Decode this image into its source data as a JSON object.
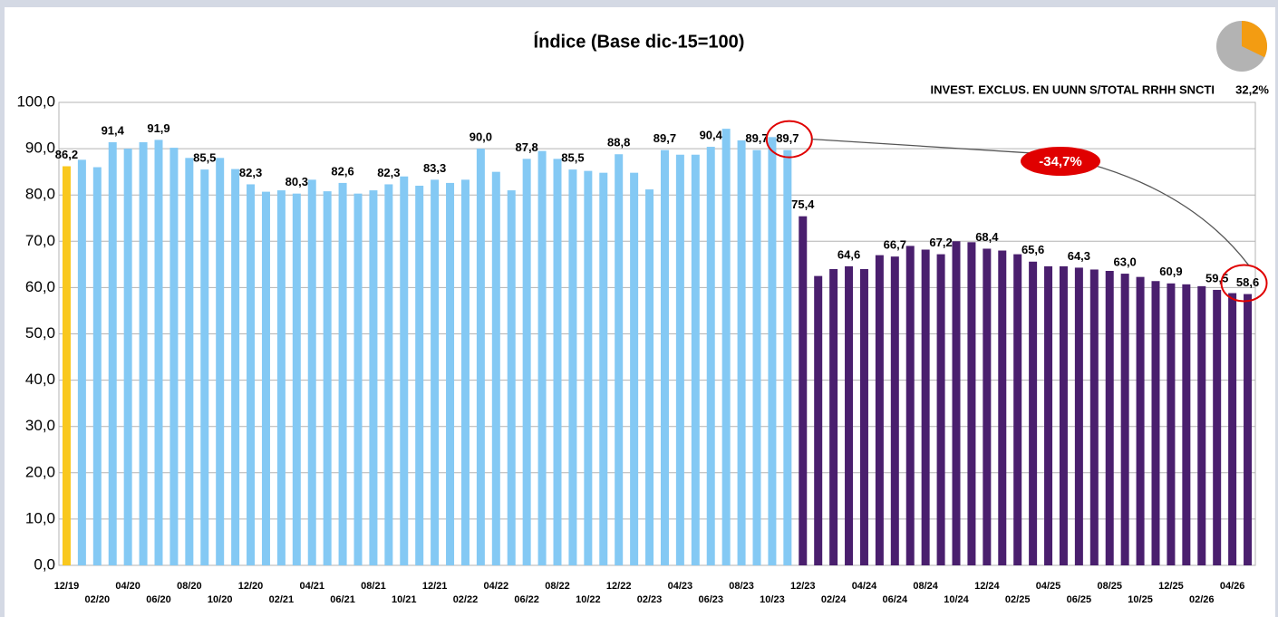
{
  "chart_data": {
    "type": "bar",
    "title": "Índice (Base dic-15=100)",
    "categories": [
      "12/19",
      null,
      "02/20",
      null,
      "04/20",
      null,
      "06/20",
      null,
      "08/20",
      null,
      "10/20",
      null,
      "12/20",
      null,
      "02/21",
      null,
      "04/21",
      null,
      "06/21",
      null,
      "08/21",
      null,
      "10/21",
      null,
      "12/21",
      null,
      "02/22",
      null,
      "04/22",
      null,
      "06/22",
      null,
      "08/22",
      null,
      "10/22",
      null,
      "12/22",
      null,
      "02/23",
      null,
      "04/23",
      null,
      "06/23",
      null,
      "08/23",
      null,
      "10/23",
      null,
      "12/23",
      null,
      "02/24",
      null,
      "04/24",
      null,
      "06/24",
      null,
      "08/24",
      null,
      "10/24",
      null,
      "12/24",
      null,
      "02/25",
      null,
      "04/25",
      null,
      "06/25",
      null,
      "08/25",
      null,
      "10/25",
      null,
      "12/25",
      null,
      "02/26",
      null,
      "04/26",
      null
    ],
    "series": [
      {
        "color": "#f9c81e",
        "values": [
          86.2,
          null,
          null,
          null,
          null,
          null,
          null,
          null,
          null,
          null,
          null,
          null,
          null,
          null,
          null,
          null,
          null,
          null,
          null,
          null,
          null,
          null,
          null,
          null,
          null,
          null,
          null,
          null,
          null,
          null,
          null,
          null,
          null,
          null,
          null,
          null,
          null,
          null,
          null,
          null,
          null,
          null,
          null,
          null,
          null,
          null,
          null,
          null,
          null,
          null,
          null,
          null,
          null,
          null,
          null,
          null,
          null,
          null,
          null,
          null,
          null,
          null,
          null,
          null,
          null,
          null,
          null,
          null,
          null,
          null,
          null,
          null,
          null,
          null,
          null,
          null,
          null,
          null
        ],
        "value_labels": [
          "86,2",
          null,
          null,
          null,
          null,
          null,
          null,
          null,
          null,
          null,
          null,
          null,
          null,
          null,
          null,
          null,
          null,
          null,
          null,
          null,
          null,
          null,
          null,
          null,
          null,
          null,
          null,
          null,
          null,
          null,
          null,
          null,
          null,
          null,
          null,
          null,
          null,
          null,
          null,
          null,
          null,
          null,
          null,
          null,
          null,
          null,
          null,
          null,
          null,
          null,
          null,
          null,
          null,
          null,
          null,
          null,
          null,
          null,
          null,
          null,
          null,
          null,
          null,
          null,
          null,
          null,
          null,
          null,
          null,
          null,
          null,
          null,
          null,
          null,
          null,
          null,
          null,
          null
        ]
      },
      {
        "color": "#84c9f4",
        "values": [
          null,
          87.6,
          86,
          91.4,
          90,
          91.4,
          91.9,
          90.2,
          88,
          85.5,
          88,
          85.6,
          82.3,
          80.7,
          81,
          80.3,
          83.3,
          80.8,
          82.6,
          80.3,
          81,
          82.3,
          84,
          82,
          83.3,
          82.6,
          83.3,
          90.0,
          85,
          81,
          87.8,
          89.5,
          87.8,
          85.5,
          85.2,
          84.8,
          88.8,
          84.8,
          81.2,
          89.7,
          88.7,
          88.7,
          90.4,
          94.3,
          91.8,
          89.7,
          92.5,
          89.7,
          null,
          null,
          null,
          null,
          null,
          null,
          null,
          null,
          null,
          null,
          null,
          null,
          null,
          null,
          null,
          null,
          null,
          null,
          null,
          null,
          null,
          null,
          null,
          null,
          null,
          null,
          null,
          null,
          null,
          null
        ],
        "value_labels": [
          null,
          null,
          null,
          "91,4",
          null,
          null,
          "91,9",
          null,
          null,
          "85,5",
          null,
          null,
          "82,3",
          null,
          null,
          "80,3",
          null,
          null,
          "82,6",
          null,
          null,
          "82,3",
          null,
          null,
          "83,3",
          null,
          null,
          "90,0",
          null,
          null,
          "87,8",
          null,
          null,
          "85,5",
          null,
          null,
          "88,8",
          null,
          null,
          "89,7",
          null,
          null,
          "90,4",
          null,
          null,
          "89,7",
          null,
          "89,7",
          null,
          null,
          null,
          null,
          null,
          null,
          null,
          null,
          null,
          null,
          null,
          null,
          null,
          null,
          null,
          null,
          null,
          null,
          null,
          null,
          null,
          null,
          null,
          null,
          null,
          null,
          null,
          null,
          null,
          null
        ]
      },
      {
        "color": "#4a1f6e",
        "values": [
          null,
          null,
          null,
          null,
          null,
          null,
          null,
          null,
          null,
          null,
          null,
          null,
          null,
          null,
          null,
          null,
          null,
          null,
          null,
          null,
          null,
          null,
          null,
          null,
          null,
          null,
          null,
          null,
          null,
          null,
          null,
          null,
          null,
          null,
          null,
          null,
          null,
          null,
          null,
          null,
          null,
          null,
          null,
          null,
          null,
          null,
          null,
          null,
          75.4,
          62.5,
          64,
          64.6,
          64,
          67,
          66.7,
          69,
          68.2,
          67.2,
          70,
          69.8,
          68.4,
          68,
          67.2,
          65.6,
          64.6,
          64.6,
          64.3,
          63.9,
          63.6,
          63.0,
          62.3,
          61.4,
          60.9,
          60.7,
          60.3,
          59.5,
          58.8,
          58.6
        ],
        "value_labels": [
          null,
          null,
          null,
          null,
          null,
          null,
          null,
          null,
          null,
          null,
          null,
          null,
          null,
          null,
          null,
          null,
          null,
          null,
          null,
          null,
          null,
          null,
          null,
          null,
          null,
          null,
          null,
          null,
          null,
          null,
          null,
          null,
          null,
          null,
          null,
          null,
          null,
          null,
          null,
          null,
          null,
          null,
          null,
          null,
          null,
          null,
          null,
          null,
          "75,4",
          null,
          null,
          "64,6",
          null,
          null,
          "66,7",
          null,
          null,
          "67,2",
          null,
          null,
          "68,4",
          null,
          null,
          "65,6",
          null,
          null,
          "64,3",
          null,
          null,
          "63,0",
          null,
          null,
          "60,9",
          null,
          null,
          "59,5",
          null,
          "58,6"
        ]
      }
    ],
    "ylim": [
      0,
      100
    ],
    "yticks": [
      {
        "value": 0,
        "label": "0,0"
      },
      {
        "value": 10,
        "label": "10,0"
      },
      {
        "value": 20,
        "label": "20,0"
      },
      {
        "value": 30,
        "label": "30,0"
      },
      {
        "value": 40,
        "label": "40,0"
      },
      {
        "value": 50,
        "label": "50,0"
      },
      {
        "value": 60,
        "label": "60,0"
      },
      {
        "value": 70,
        "label": "70,0"
      },
      {
        "value": 80,
        "label": "80,0"
      },
      {
        "value": 90,
        "label": "90,0"
      },
      {
        "value": 100,
        "label": "100,0"
      }
    ],
    "grid": true,
    "change_annotation": "-34,7%",
    "inset": {
      "label": "INVEST. EXCLUS. EN UUNN S/TOTAL RRHH SNCTI",
      "value": 32.2,
      "value_label": "32,2%",
      "colors": [
        "#f39c12",
        "#b3b3b3"
      ]
    }
  }
}
